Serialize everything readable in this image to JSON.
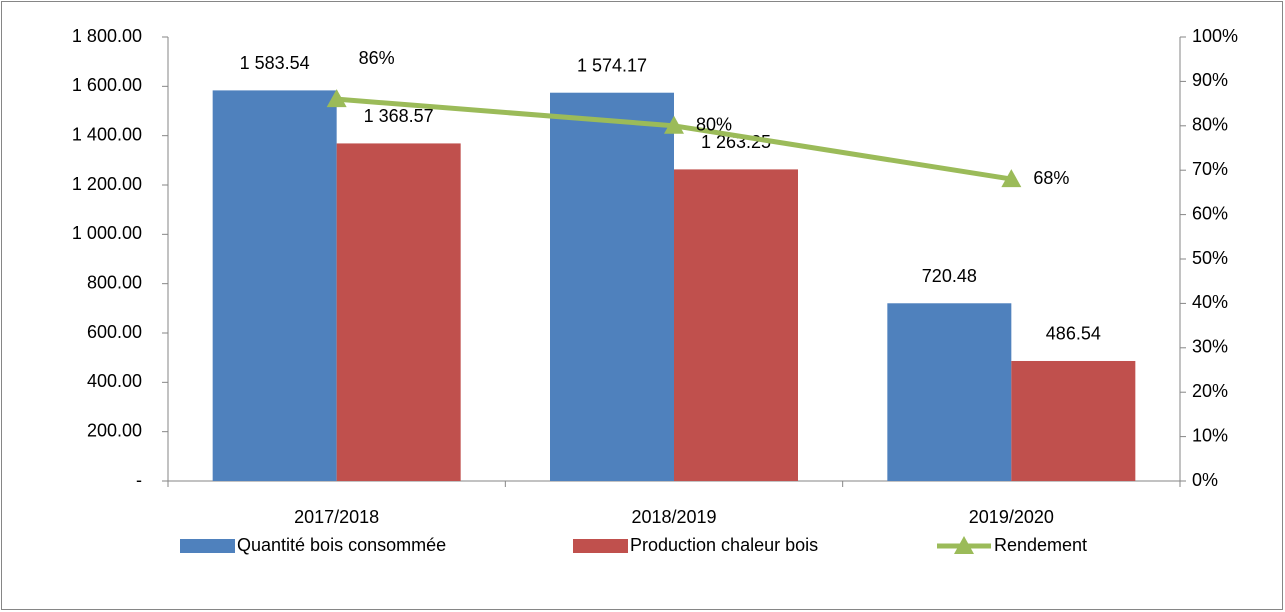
{
  "chart_data": {
    "type": "bar",
    "categories": [
      "2017/2018",
      "2018/2019",
      "2019/2020"
    ],
    "series": [
      {
        "name": "Quantité bois consommée",
        "color": "#4f81bd",
        "type": "bar",
        "values": [
          1583.54,
          1574.17,
          720.48
        ],
        "value_labels": [
          "1 583.54",
          "1 574.17",
          "720.48"
        ]
      },
      {
        "name": "Production chaleur bois",
        "color": "#c0504d",
        "type": "bar",
        "values": [
          1368.57,
          1263.25,
          486.54
        ],
        "value_labels": [
          "1 368.57",
          "1 263.25",
          "486.54"
        ]
      },
      {
        "name": "Rendement",
        "color": "#9bbb59",
        "type": "line",
        "axis": "y2",
        "marker": "triangle",
        "values": [
          86,
          80,
          68
        ],
        "value_labels": [
          "86%",
          "80%",
          "68%"
        ]
      }
    ],
    "ylim": [
      0,
      1800
    ],
    "yticks": [
      {
        "value": 0,
        "label": "-"
      },
      {
        "value": 200,
        "label": "200.00"
      },
      {
        "value": 400,
        "label": "400.00"
      },
      {
        "value": 600,
        "label": "600.00"
      },
      {
        "value": 800,
        "label": "800.00"
      },
      {
        "value": 1000,
        "label": "1 000.00"
      },
      {
        "value": 1200,
        "label": "1 200.00"
      },
      {
        "value": 1400,
        "label": "1 400.00"
      },
      {
        "value": 1600,
        "label": "1 600.00"
      },
      {
        "value": 1800,
        "label": "1 800.00"
      }
    ],
    "y2lim": [
      0,
      100
    ],
    "y2ticks": [
      {
        "value": 0,
        "label": "0%"
      },
      {
        "value": 10,
        "label": "10%"
      },
      {
        "value": 20,
        "label": "20%"
      },
      {
        "value": 30,
        "label": "30%"
      },
      {
        "value": 40,
        "label": "40%"
      },
      {
        "value": 50,
        "label": "50%"
      },
      {
        "value": 60,
        "label": "60%"
      },
      {
        "value": 70,
        "label": "70%"
      },
      {
        "value": 80,
        "label": "80%"
      },
      {
        "value": 90,
        "label": "90%"
      },
      {
        "value": 100,
        "label": "100%"
      }
    ],
    "grid": false,
    "legend": "bottom"
  }
}
